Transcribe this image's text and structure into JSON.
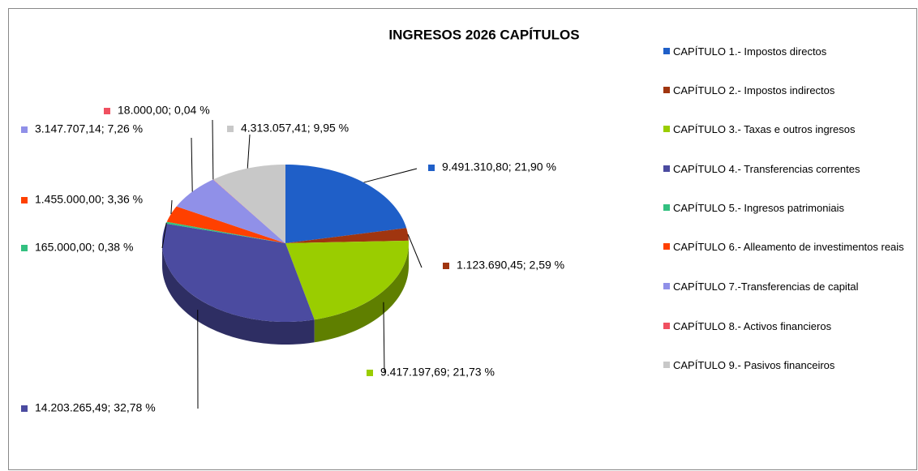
{
  "chart_data": {
    "type": "pie",
    "title": "INGRESOS 2026 CAPÍTULOS",
    "categories": [
      "CAPÍTULO 1.- Impostos directos",
      "CAPÍTULO 2.- Impostos indirectos",
      "CAPÍTULO 3.- Taxas e outros ingresos",
      "CAPÍTULO 4.- Transferencias correntes",
      "CAPÍTULO 5.- Ingresos patrimoniais",
      "CAPÍTULO 6.- Alleamento de investimentos reais",
      "CAPÍTULO 7.-Transferencias de capital",
      "CAPÍTULO 8.- Activos financieros",
      "CAPÍTULO 9.- Pasivos financeiros"
    ],
    "values": [
      9491310.8,
      1123690.45,
      9417197.69,
      14203265.49,
      165000.0,
      1455000.0,
      3147707.14,
      18000.0,
      4313057.41
    ],
    "value_labels": [
      "9.491.310,80; 21,90 %",
      "1.123.690,45; 2,59 %",
      "9.417.197,69; 21,73 %",
      "14.203.265,49; 32,78 %",
      "165.000,00; 0,38 %",
      "1.455.000,00; 3,36 %",
      "3.147.707,14; 7,26 %",
      "18.000,00; 0,04 %",
      "4.313.057,41; 9,95 %"
    ],
    "colors": [
      "#1f5fc8",
      "#a0350f",
      "#9acd00",
      "#4b4ba0",
      "#33c080",
      "#ff4000",
      "#9090e8",
      "#f05060",
      "#c8c8c8"
    ],
    "legend": "right"
  }
}
